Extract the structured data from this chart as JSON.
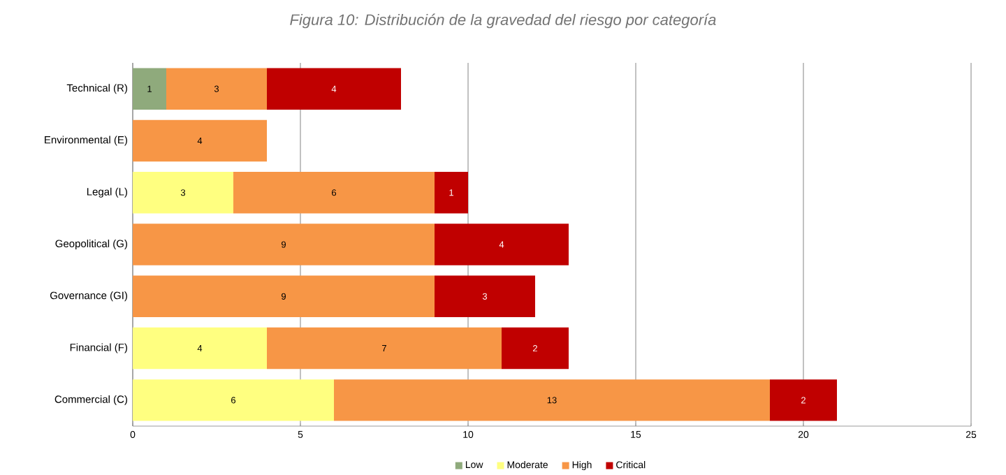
{
  "chart_data": {
    "type": "bar",
    "orientation": "horizontal",
    "stacked": true,
    "title": "Figura 10: Distribución de la gravedad del riesgo por categoría",
    "categories": [
      "Technical (R)",
      "Environmental (E)",
      "Legal (L)",
      "Geopolitical (G)",
      "Governance (GI)",
      "Financial (F)",
      "Commercial (C)"
    ],
    "series": [
      {
        "name": "Low",
        "color": "#8faa7c",
        "values": [
          1,
          null,
          null,
          null,
          null,
          null,
          null
        ]
      },
      {
        "name": "Moderate",
        "color": "#ffff80",
        "values": [
          null,
          null,
          3,
          null,
          null,
          4,
          6
        ]
      },
      {
        "name": "High",
        "color": "#f79646",
        "values": [
          3,
          4,
          6,
          9,
          9,
          7,
          13
        ]
      },
      {
        "name": "Critical",
        "color": "#c00000",
        "values": [
          4,
          null,
          1,
          4,
          3,
          2,
          2
        ]
      }
    ],
    "xlim": [
      0,
      25
    ],
    "xticks": [
      0,
      5,
      10,
      15,
      20,
      25
    ],
    "grid": "x",
    "legend": "bottom",
    "data_labels": true
  }
}
